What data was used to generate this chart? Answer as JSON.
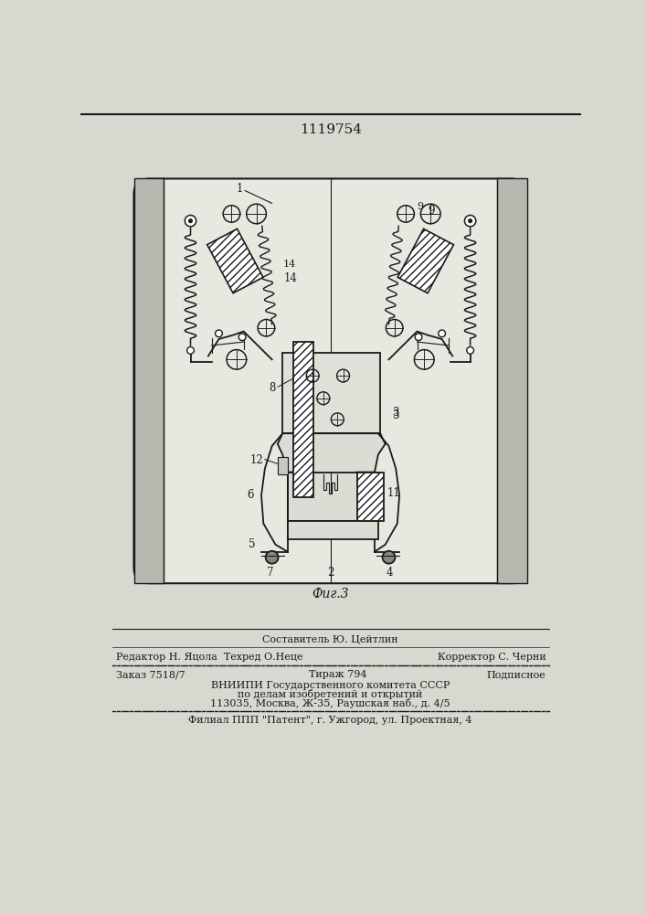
{
  "title_number": "1119754",
  "fig_label": "Фиг.3",
  "page_bg": "#d8d8d0",
  "inner_bg": "#e8e8e0",
  "line_color": "#1a1a1a",
  "panel_color": "#b8b8b0",
  "footer": {
    "sostavitel": "Составитель Ю. Цейтлин",
    "redaktor": "Редактор Н. Яцола  Техред О.Неце",
    "korrektor": "Корректор С. Черни",
    "zakaz": "Заказ 7518/7",
    "tirazh": "Тираж 794",
    "podpisnoe": "Подписное",
    "vniiipi1": "ВНИИПИ Государственного комитета СССР",
    "vniiipi2": "по делам изобретений и открытий",
    "vniiipi3": "113035, Москва, Ж-35, Раушская наб., д. 4/5",
    "filial": "Филиал ППП \"Патент\", г. Ужгород, ул. Проектная, 4"
  }
}
